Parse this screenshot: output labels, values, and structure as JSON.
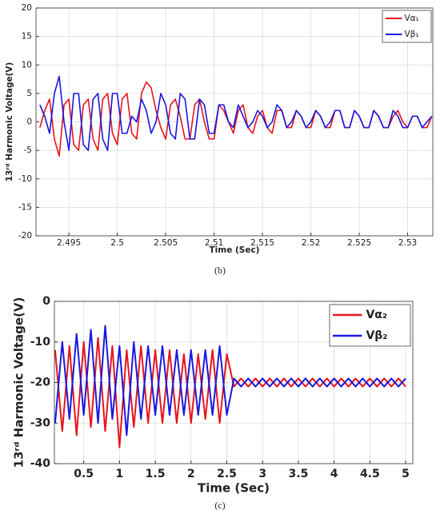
{
  "chart_data": [
    {
      "type": "line",
      "caption": "(b)",
      "xlabel": "Time (Sec)",
      "ylabel": "13ʳᵈ Harmonic Voltage(V)",
      "x": [
        2.492,
        2.4925,
        2.493,
        2.4935,
        2.494,
        2.4945,
        2.495,
        2.4955,
        2.496,
        2.4965,
        2.497,
        2.4975,
        2.498,
        2.4985,
        2.499,
        2.4995,
        2.5,
        2.5005,
        2.501,
        2.5015,
        2.502,
        2.5025,
        2.503,
        2.5035,
        2.504,
        2.5045,
        2.505,
        2.5055,
        2.506,
        2.5065,
        2.507,
        2.5075,
        2.508,
        2.5085,
        2.509,
        2.5095,
        2.51,
        2.5105,
        2.511,
        2.5115,
        2.512,
        2.5125,
        2.513,
        2.5135,
        2.514,
        2.5145,
        2.515,
        2.5155,
        2.516,
        2.5165,
        2.517,
        2.5175,
        2.518,
        2.5185,
        2.519,
        2.5195,
        2.52,
        2.5205,
        2.521,
        2.5215,
        2.522,
        2.5225,
        2.523,
        2.5235,
        2.524,
        2.5245,
        2.525,
        2.5255,
        2.526,
        2.5265,
        2.527,
        2.5275,
        2.528,
        2.5285,
        2.529,
        2.5295,
        2.53,
        2.5305,
        2.531,
        2.5315,
        2.532,
        2.5325
      ],
      "series": [
        {
          "name": "Vα₁",
          "color": "#e8141c",
          "values": [
            -1,
            2,
            4,
            -3,
            -6,
            3,
            4,
            -4,
            -5,
            3,
            4,
            -3,
            -5,
            4,
            5,
            -2,
            -4,
            4,
            5,
            -2,
            -3,
            5,
            7,
            6,
            2,
            -1,
            -3,
            3,
            4,
            1,
            -3,
            -3,
            3,
            4,
            0,
            -3,
            -3,
            3,
            2,
            0,
            -2,
            2,
            3,
            -1,
            -2,
            1,
            2,
            -1,
            -2,
            2,
            2,
            -1,
            -1,
            2,
            1,
            -1,
            -1,
            2,
            1,
            -1,
            -1,
            2,
            2,
            -1,
            -1,
            2,
            1,
            -1,
            -1,
            2,
            1,
            -1,
            -1,
            1,
            2,
            0,
            -1,
            1,
            1,
            -1,
            -1,
            1
          ]
        },
        {
          "name": "Vβ₁",
          "color": "#1818e0",
          "values": [
            3,
            1,
            -2,
            5,
            8,
            0,
            -5,
            5,
            5,
            -4,
            -5,
            4,
            5,
            -3,
            -5,
            5,
            5,
            -2,
            -2,
            1,
            0,
            4,
            2,
            -2,
            0,
            5,
            3,
            -2,
            -3,
            5,
            4,
            -3,
            -3,
            4,
            3,
            -2,
            -2,
            3,
            3,
            0,
            -1,
            3,
            1,
            -1,
            0,
            2,
            1,
            -1,
            0,
            3,
            2,
            -1,
            0,
            2,
            1,
            -1,
            0,
            2,
            1,
            -1,
            0,
            2,
            2,
            -1,
            -1,
            2,
            1,
            -1,
            -1,
            2,
            1,
            -1,
            -1,
            2,
            1,
            -1,
            -1,
            1,
            1,
            -1,
            0,
            1
          ]
        }
      ],
      "xlim": [
        2.4916,
        2.5326
      ],
      "ylim": [
        -20,
        20
      ],
      "xticks": [
        2.495,
        2.5,
        2.505,
        2.51,
        2.515,
        2.52,
        2.525,
        2.53
      ],
      "yticks": [
        -20,
        -15,
        -10,
        -5,
        0,
        5,
        10,
        15,
        20
      ],
      "grid": true,
      "legend": "upper right"
    },
    {
      "type": "line",
      "caption": "(c)",
      "xlabel": "Time (Sec)",
      "ylabel": "13ʳᵈ Harmonic Voltage(V)",
      "x": [
        0.1,
        0.2,
        0.3,
        0.4,
        0.5,
        0.6,
        0.7,
        0.8,
        0.9,
        1.0,
        1.1,
        1.2,
        1.3,
        1.4,
        1.5,
        1.6,
        1.7,
        1.8,
        1.9,
        2.0,
        2.1,
        2.2,
        2.3,
        2.4,
        2.5,
        2.6,
        2.7,
        2.8,
        2.9,
        3.0,
        3.1,
        3.2,
        3.3,
        3.4,
        3.5,
        3.6,
        3.7,
        3.8,
        3.9,
        4.0,
        4.1,
        4.2,
        4.3,
        4.4,
        4.5,
        4.6,
        4.7,
        4.8,
        4.9,
        5.0
      ],
      "series": [
        {
          "name": "Vα₂",
          "color": "#e8141c",
          "values": [
            -12,
            -32,
            -11,
            -33,
            -10,
            -31,
            -9,
            -32,
            -11,
            -36,
            -12,
            -31,
            -11,
            -30,
            -12,
            -30,
            -12,
            -30,
            -13,
            -30,
            -13,
            -29,
            -12,
            -30,
            -13,
            -21,
            -19,
            -21,
            -19,
            -21,
            -19,
            -21,
            -19,
            -21,
            -19,
            -21,
            -19,
            -21,
            -19,
            -21,
            -19,
            -21,
            -19,
            -21,
            -19,
            -21,
            -19,
            -21,
            -19,
            -21
          ]
        },
        {
          "name": "Vβ₂",
          "color": "#1818e0",
          "values": [
            -30,
            -10,
            -29,
            -8,
            -28,
            -7,
            -30,
            -6,
            -29,
            -11,
            -33,
            -10,
            -29,
            -11,
            -28,
            -11,
            -28,
            -12,
            -28,
            -12,
            -28,
            -12,
            -28,
            -11,
            -28,
            -19,
            -21,
            -19,
            -21,
            -19,
            -21,
            -19,
            -21,
            -19,
            -21,
            -19,
            -21,
            -19,
            -21,
            -19,
            -21,
            -19,
            -21,
            -19,
            -21,
            -19,
            -21,
            -19,
            -21,
            -19
          ]
        }
      ],
      "xlim": [
        0.09,
        5.1
      ],
      "ylim": [
        -40,
        0
      ],
      "xticks": [
        0.5,
        1,
        1.5,
        2,
        2.5,
        3,
        3.5,
        4,
        4.5,
        5
      ],
      "yticks": [
        -40,
        -30,
        -20,
        -10,
        0
      ],
      "grid": true,
      "legend": "upper right"
    }
  ]
}
